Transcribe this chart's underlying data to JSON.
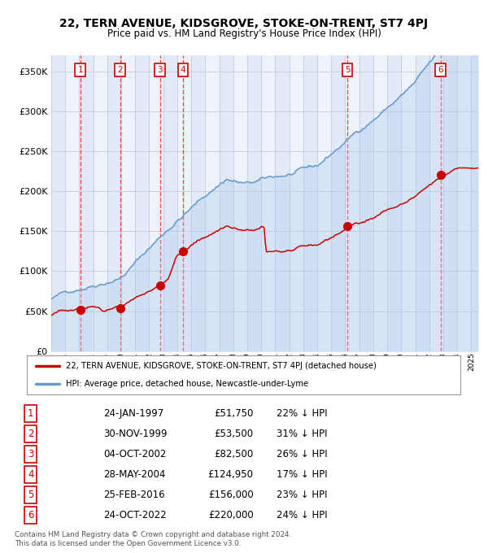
{
  "title": "22, TERN AVENUE, KIDSGROVE, STOKE-ON-TRENT, ST7 4PJ",
  "subtitle": "Price paid vs. HM Land Registry's House Price Index (HPI)",
  "xlim_start": 1995.0,
  "xlim_end": 2025.5,
  "ylim": [
    0,
    370000
  ],
  "yticks": [
    0,
    50000,
    100000,
    150000,
    200000,
    250000,
    300000,
    350000
  ],
  "ytick_labels": [
    "£0",
    "£50K",
    "£100K",
    "£150K",
    "£200K",
    "£250K",
    "£300K",
    "£350K"
  ],
  "sale_dates": [
    1997.07,
    1999.92,
    2002.76,
    2004.41,
    2016.15,
    2022.81
  ],
  "sale_prices": [
    51750,
    53500,
    82500,
    124950,
    156000,
    220000
  ],
  "sale_labels": [
    "1",
    "2",
    "3",
    "4",
    "5",
    "6"
  ],
  "legend_property_label": "22, TERN AVENUE, KIDSGROVE, STOKE-ON-TRENT, ST7 4PJ (detached house)",
  "legend_hpi_label": "HPI: Average price, detached house, Newcastle-under-Lyme",
  "table_rows": [
    [
      "1",
      "24-JAN-1997",
      "£51,750",
      "22% ↓ HPI"
    ],
    [
      "2",
      "30-NOV-1999",
      "£53,500",
      "31% ↓ HPI"
    ],
    [
      "3",
      "04-OCT-2002",
      "£82,500",
      "26% ↓ HPI"
    ],
    [
      "4",
      "28-MAY-2004",
      "£124,950",
      "17% ↓ HPI"
    ],
    [
      "5",
      "25-FEB-2016",
      "£156,000",
      "23% ↓ HPI"
    ],
    [
      "6",
      "24-OCT-2022",
      "£220,000",
      "24% ↓ HPI"
    ]
  ],
  "footer_line1": "Contains HM Land Registry data © Crown copyright and database right 2024.",
  "footer_line2": "This data is licensed under the Open Government Licence v3.0.",
  "property_line_color": "#cc0000",
  "hpi_line_color": "#6699cc",
  "hpi_fill_color": "#aaccee",
  "sale_marker_color": "#cc0000",
  "vline_color": "#ff4444",
  "bg_color": "#eef2fa",
  "grid_color": "#c8d0e0",
  "shade_colors": [
    "#e2eaf8",
    "#eef2fa"
  ]
}
